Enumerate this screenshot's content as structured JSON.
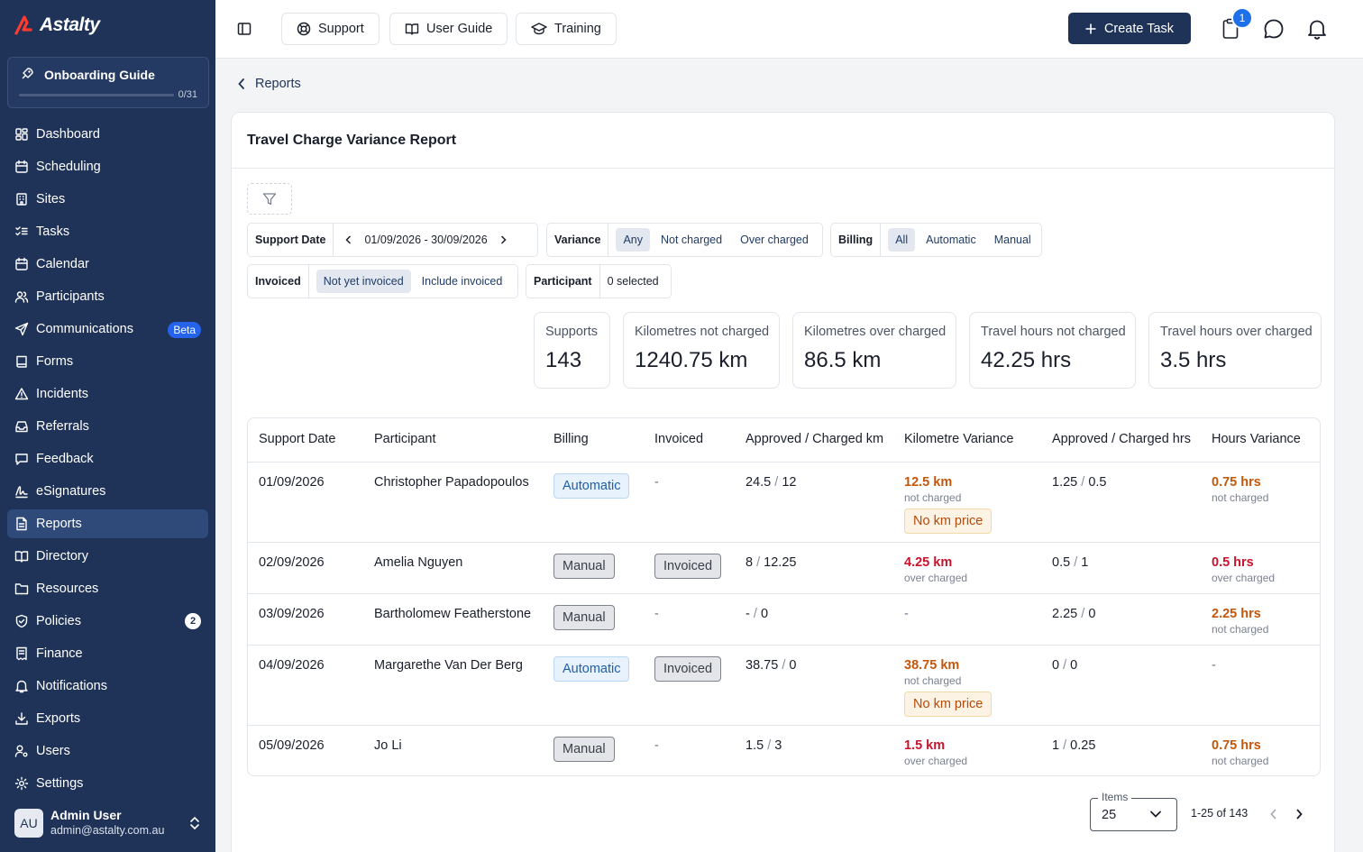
{
  "app": {
    "logo": "Astalty"
  },
  "onboarding": {
    "title": "Onboarding Guide",
    "count": "0/31",
    "progress": 0
  },
  "nav": [
    {
      "label": "Dashboard",
      "icon": "dashboard-icon"
    },
    {
      "label": "Scheduling",
      "icon": "calendar-clock-icon"
    },
    {
      "label": "Sites",
      "icon": "building-icon"
    },
    {
      "label": "Tasks",
      "icon": "list-checks-icon"
    },
    {
      "label": "Calendar",
      "icon": "calendar-icon"
    },
    {
      "label": "Participants",
      "icon": "users-icon"
    },
    {
      "label": "Communications",
      "icon": "send-icon",
      "badge": "Beta"
    },
    {
      "label": "Forms",
      "icon": "book-icon"
    },
    {
      "label": "Incidents",
      "icon": "warning-icon"
    },
    {
      "label": "Referrals",
      "icon": "inbox-icon"
    },
    {
      "label": "Feedback",
      "icon": "message-square-icon"
    },
    {
      "label": "eSignatures",
      "icon": "signature-icon"
    },
    {
      "label": "Reports",
      "icon": "file-text-icon",
      "active": true
    },
    {
      "label": "Directory",
      "icon": "book-open-icon"
    },
    {
      "label": "Resources",
      "icon": "folder-icon"
    },
    {
      "label": "Policies",
      "icon": "shield-check-icon",
      "badge": "2"
    },
    {
      "label": "Finance",
      "icon": "receipt-icon"
    },
    {
      "label": "Notifications",
      "icon": "bell-icon"
    },
    {
      "label": "Exports",
      "icon": "download-icon"
    },
    {
      "label": "Users",
      "icon": "user-cog-icon"
    },
    {
      "label": "Settings",
      "icon": "gear-icon"
    }
  ],
  "user": {
    "initials": "AU",
    "name": "Admin User",
    "email": "admin@astalty.com.au"
  },
  "topbar": {
    "support": "Support",
    "guide": "User Guide",
    "training": "Training",
    "create": "Create Task",
    "notif_count": "1"
  },
  "breadcrumb": {
    "label": "Reports"
  },
  "report": {
    "title": "Travel Charge Variance Report",
    "filters": {
      "support_date": {
        "label": "Support Date",
        "value": "01/09/2026 - 30/09/2026"
      },
      "variance": {
        "label": "Variance",
        "options": [
          "Any",
          "Not charged",
          "Over charged"
        ],
        "selected": "Any"
      },
      "billing": {
        "label": "Billing",
        "options": [
          "All",
          "Automatic",
          "Manual"
        ],
        "selected": "All"
      },
      "invoiced": {
        "label": "Invoiced",
        "options": [
          "Not yet invoiced",
          "Include invoiced"
        ],
        "selected": "Not yet invoiced"
      },
      "participant": {
        "label": "Participant",
        "value": "0 selected"
      }
    },
    "stats": [
      {
        "label": "Supports",
        "value": "143"
      },
      {
        "label": "Kilometres not charged",
        "value": "1240.75 km"
      },
      {
        "label": "Kilometres over charged",
        "value": "86.5 km"
      },
      {
        "label": "Travel hours not charged",
        "value": "42.25 hrs"
      },
      {
        "label": "Travel hours over charged",
        "value": "3.5 hrs"
      }
    ],
    "columns": [
      "Support Date",
      "Participant",
      "Billing",
      "Invoiced",
      "Approved / Charged km",
      "Kilometre Variance",
      "Approved / Charged hrs",
      "Hours Variance"
    ],
    "rows": [
      {
        "date": "01/09/2026",
        "participant": "Christopher Papadopoulos",
        "billing": "Automatic",
        "invoiced": "-",
        "km_approved": "24.5",
        "km_charged": "12",
        "km_var": "12.5 km",
        "km_var_note": "not charged",
        "km_warn": "No km price",
        "hrs_approved": "1.25",
        "hrs_charged": "0.5",
        "hrs_var": "0.75 hrs",
        "hrs_var_note": "not charged"
      },
      {
        "date": "02/09/2026",
        "participant": "Amelia Nguyen",
        "billing": "Manual",
        "invoiced": "Invoiced",
        "km_approved": "8",
        "km_charged": "12.25",
        "km_var": "4.25 km",
        "km_var_note": "over charged",
        "hrs_approved": "0.5",
        "hrs_charged": "1",
        "hrs_var": "0.5 hrs",
        "hrs_var_note": "over charged"
      },
      {
        "date": "03/09/2026",
        "participant": "Bartholomew Featherstone",
        "billing": "Manual",
        "invoiced": "-",
        "km_approved": "-",
        "km_charged": "0",
        "km_var": "-",
        "hrs_approved": "2.25",
        "hrs_charged": "0",
        "hrs_var": "2.25 hrs",
        "hrs_var_note": "not charged"
      },
      {
        "date": "04/09/2026",
        "participant": "Margarethe Van Der Berg",
        "billing": "Automatic",
        "invoiced": "Invoiced",
        "km_approved": "38.75",
        "km_charged": "0",
        "km_var": "38.75 km",
        "km_var_note": "not charged",
        "km_warn": "No km price",
        "hrs_approved": "0",
        "hrs_charged": "0",
        "hrs_var": "-"
      },
      {
        "date": "05/09/2026",
        "participant": "Jo Li",
        "billing": "Manual",
        "invoiced": "-",
        "km_approved": "1.5",
        "km_charged": "3",
        "km_var": "1.5 km",
        "km_var_note": "over charged",
        "hrs_approved": "1",
        "hrs_charged": "0.25",
        "hrs_var": "0.75 hrs",
        "hrs_var_note": "not charged"
      }
    ],
    "pagination": {
      "items_label": "Items",
      "items_value": "25",
      "range": "1-25 of 143"
    }
  }
}
